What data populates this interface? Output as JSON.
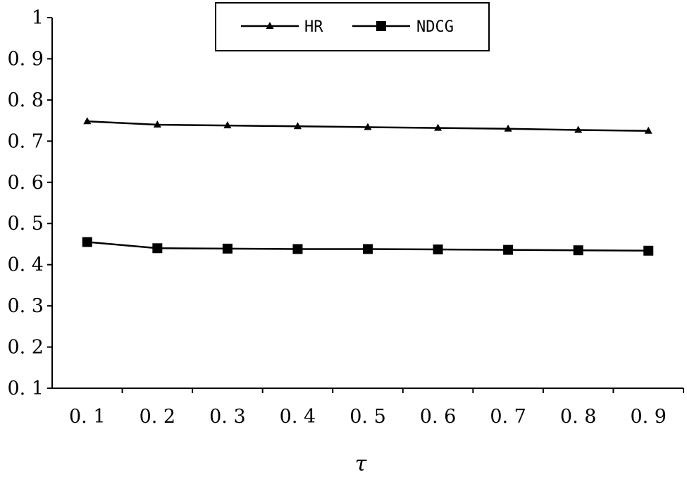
{
  "chart_data": {
    "type": "line",
    "title": "",
    "xlabel": "τ",
    "ylabel": "",
    "x_tick_labels": [
      "0. 1",
      "0. 2",
      "0. 3",
      "0. 4",
      "0. 5",
      "0. 6",
      "0. 7",
      "0. 8",
      "0. 9"
    ],
    "x": [
      0.1,
      0.2,
      0.3,
      0.4,
      0.5,
      0.6,
      0.7,
      0.8,
      0.9
    ],
    "y_tick_labels": [
      "0. 1",
      "0. 2",
      "0. 3",
      "0. 4",
      "0. 5",
      "0. 6",
      "0. 7",
      "0. 8",
      "0. 9",
      "1"
    ],
    "y_ticks": [
      0.1,
      0.2,
      0.3,
      0.4,
      0.5,
      0.6,
      0.7,
      0.8,
      0.9,
      1.0
    ],
    "ylim": [
      0.1,
      1.0
    ],
    "grid": false,
    "legend_position": "top-center",
    "series": [
      {
        "name": "HR",
        "marker": "triangle",
        "color": "#000000",
        "values": [
          0.748,
          0.74,
          0.738,
          0.736,
          0.734,
          0.732,
          0.73,
          0.727,
          0.725
        ]
      },
      {
        "name": "NDCG",
        "marker": "square",
        "color": "#000000",
        "values": [
          0.455,
          0.44,
          0.439,
          0.438,
          0.438,
          0.437,
          0.436,
          0.435,
          0.434
        ]
      }
    ]
  }
}
